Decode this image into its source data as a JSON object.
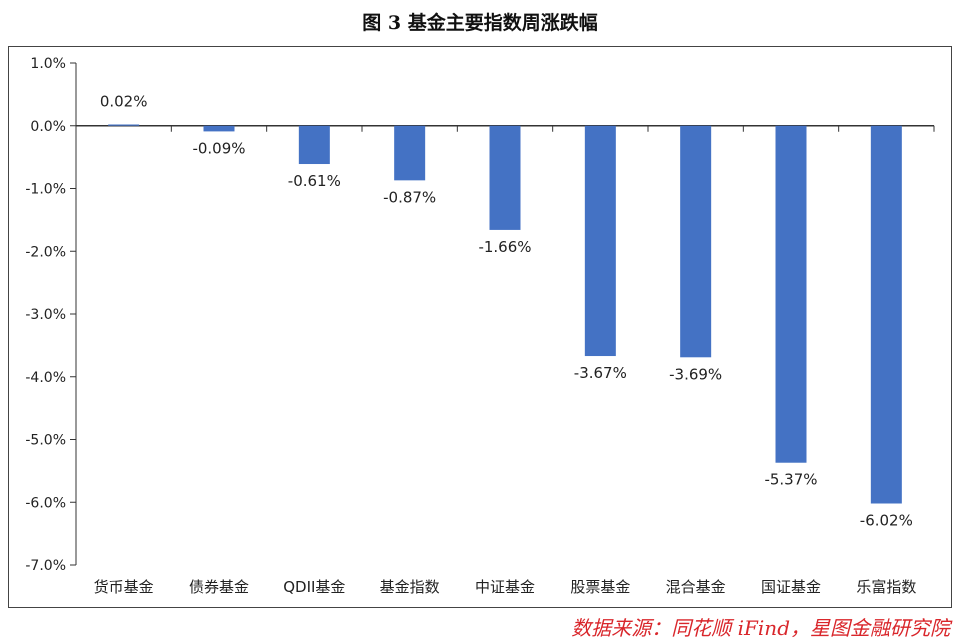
{
  "title": "图 3 基金主要指数周涨跌幅",
  "source": "数据来源：同花顺 iFind，星图金融研究院",
  "colors": {
    "bar": "#4472C4",
    "source_text": "#d9262b"
  },
  "chart_data": {
    "type": "bar",
    "title": "图 3 基金主要指数周涨跌幅",
    "xlabel": "",
    "ylabel": "",
    "ylim": [
      -7.0,
      1.0
    ],
    "yticks": [
      1.0,
      0.0,
      -1.0,
      -2.0,
      -3.0,
      -4.0,
      -5.0,
      -6.0,
      -7.0
    ],
    "ytick_labels": [
      "1.0%",
      "0.0%",
      "-1.0%",
      "-2.0%",
      "-3.0%",
      "-4.0%",
      "-5.0%",
      "-6.0%",
      "-7.0%"
    ],
    "categories": [
      "货币基金",
      "债券基金",
      "QDII基金",
      "基金指数",
      "中证基金",
      "股票基金",
      "混合基金",
      "国证基金",
      "乐富指数"
    ],
    "values": [
      0.02,
      -0.09,
      -0.61,
      -0.87,
      -1.66,
      -3.67,
      -3.69,
      -5.37,
      -6.02
    ],
    "data_labels": [
      "0.02%",
      "-0.09%",
      "-0.61%",
      "-0.87%",
      "-1.66%",
      "-3.67%",
      "-3.69%",
      "-5.37%",
      "-6.02%"
    ],
    "grid": false,
    "legend": "none"
  }
}
